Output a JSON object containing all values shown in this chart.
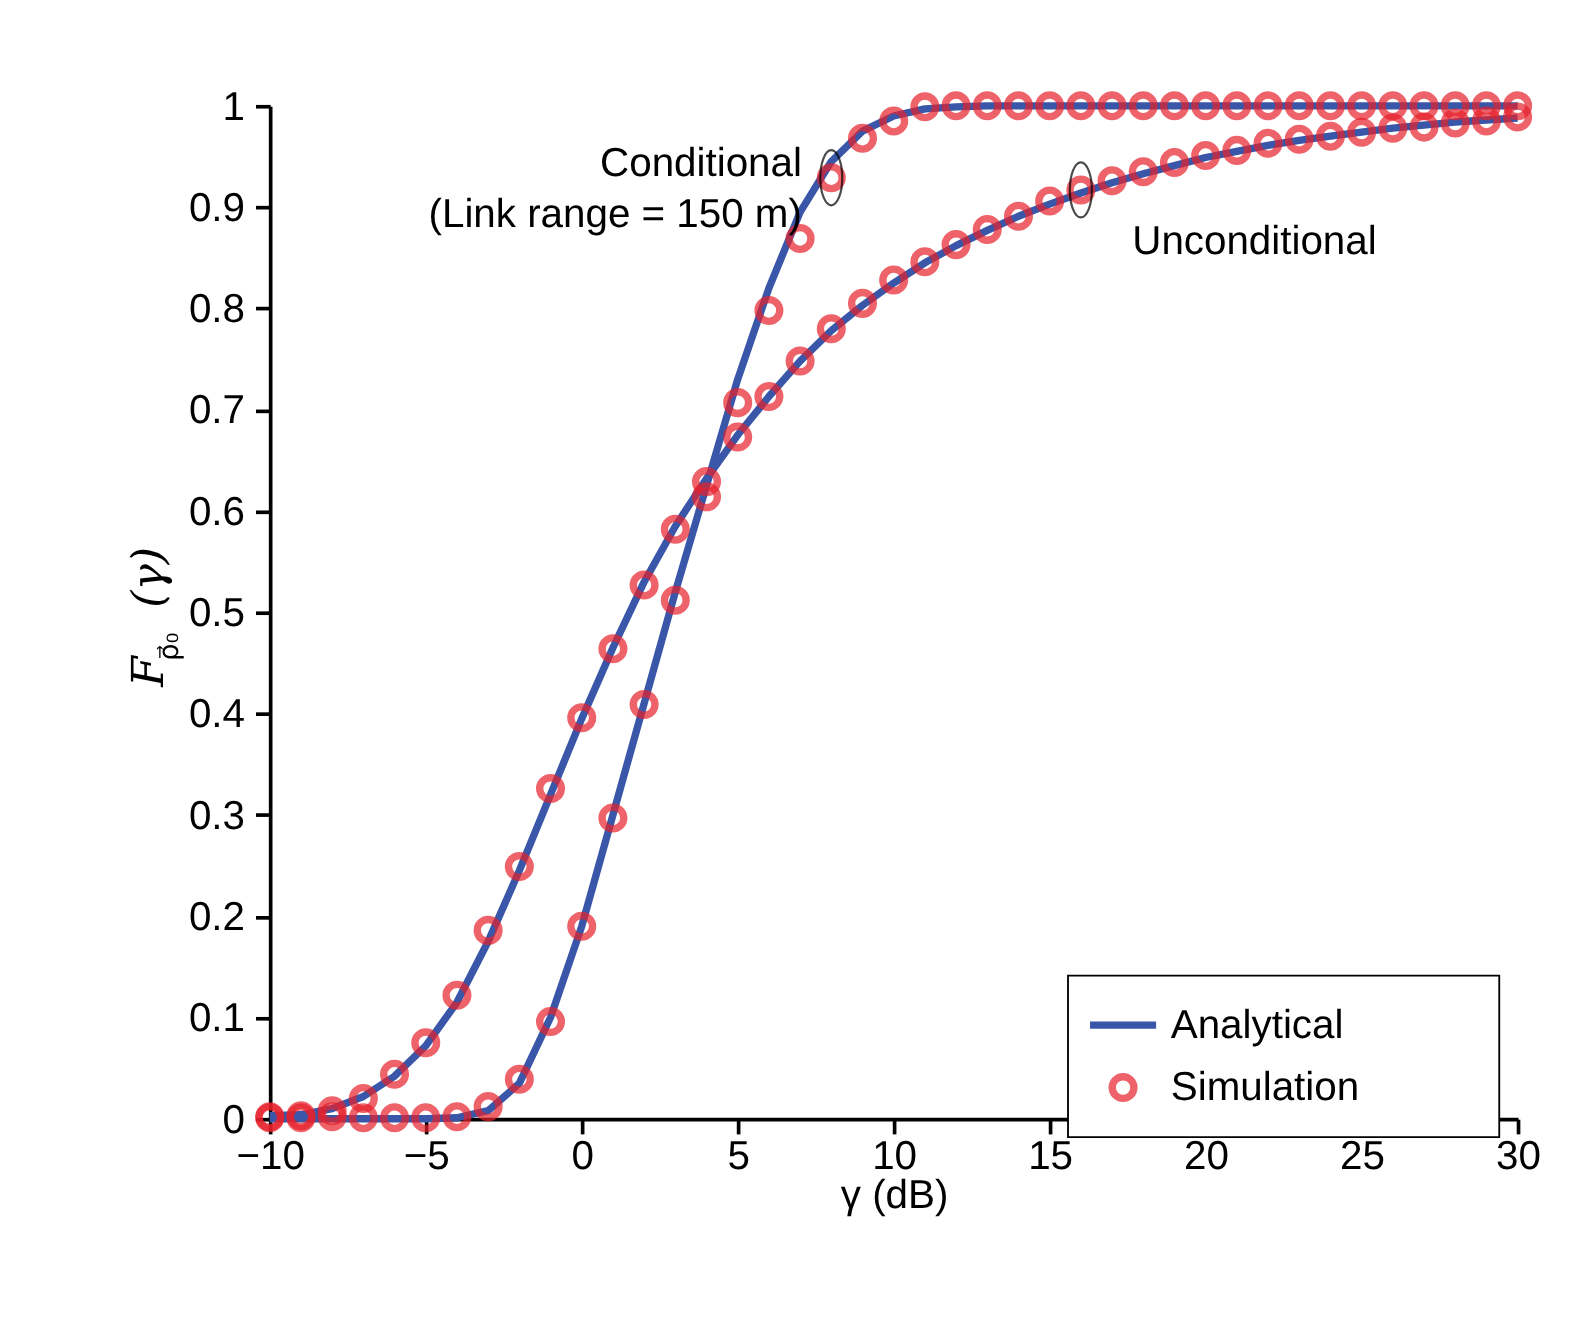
{
  "chart_data": {
    "type": "line",
    "xlabel": "γ (dB)",
    "ylabel": "F$_{ρ⃗₀}$(γ)",
    "xlim": [
      -10,
      30
    ],
    "xticks": [
      -10,
      -5,
      0,
      5,
      10,
      15,
      20,
      25,
      30
    ],
    "ylim": [
      0,
      1
    ],
    "yticks": [
      0,
      0.1,
      0.2,
      0.3,
      0.4,
      0.5,
      0.6,
      0.7,
      0.8,
      0.9,
      1
    ],
    "grid": false,
    "legend": "bottom right",
    "line_style": "solid",
    "x": [
      -10,
      -9,
      -8,
      -7,
      -6,
      -5,
      -4,
      -3,
      -2,
      -1,
      0,
      1,
      2,
      3,
      4,
      5,
      6,
      7,
      8,
      9,
      10,
      11,
      12,
      13,
      14,
      15,
      16,
      17,
      18,
      19,
      20,
      21,
      22,
      23,
      24,
      25,
      26,
      27,
      28,
      29,
      30
    ],
    "series": [
      {
        "name": "Analytical",
        "color": "#3a56a8",
        "values": [
          0.003,
          0.004,
          0.01,
          0.022,
          0.042,
          0.072,
          0.115,
          0.175,
          0.245,
          0.32,
          0.395,
          0.465,
          0.53,
          0.585,
          0.632,
          0.675,
          0.713,
          0.748,
          0.778,
          0.803,
          0.825,
          0.845,
          0.862,
          0.877,
          0.891,
          0.903,
          0.914,
          0.924,
          0.933,
          0.941,
          0.949,
          0.955,
          0.961,
          0.966,
          0.97,
          0.974,
          0.978,
          0.981,
          0.984,
          0.986,
          0.988
        ]
      },
      {
        "color": "#3a56a8",
        "values": [
          0,
          0,
          0,
          0,
          0,
          0,
          0.001,
          0.008,
          0.035,
          0.1,
          0.19,
          0.3,
          0.41,
          0.52,
          0.625,
          0.73,
          0.82,
          0.895,
          0.945,
          0.975,
          0.99,
          0.997,
          0.999,
          1,
          1,
          1,
          1,
          1,
          1,
          1,
          1,
          1,
          1,
          1,
          1,
          1,
          1,
          1,
          1,
          1,
          1
        ]
      },
      {
        "name": "Simulation",
        "type": "scatter",
        "marker": "circle",
        "color": "#e8202a",
        "values": [
          0.002,
          0.003,
          0.008,
          0.02,
          0.044,
          0.075,
          0.122,
          0.186,
          0.249,
          0.326,
          0.396,
          0.464,
          0.527,
          0.582,
          0.629,
          0.673,
          0.713,
          0.748,
          0.78,
          0.805,
          0.828,
          0.846,
          0.863,
          0.878,
          0.891,
          0.906,
          0.917,
          0.926,
          0.935,
          0.944,
          0.951,
          0.956,
          0.963,
          0.967,
          0.97,
          0.974,
          0.978,
          0.979,
          0.983,
          0.985,
          0.989
        ]
      },
      {
        "type": "scatter",
        "marker": "circle",
        "color": "#e8202a",
        "values": [
          0.001,
          0.001,
          0.002,
          0.001,
          0.001,
          0.001,
          0.002,
          0.012,
          0.039,
          0.096,
          0.19,
          0.297,
          0.409,
          0.512,
          0.614,
          0.707,
          0.798,
          0.869,
          0.929,
          0.968,
          0.985,
          0.999,
          1,
          1,
          1,
          1,
          1,
          1,
          1,
          1,
          1,
          1,
          1,
          1,
          1,
          1,
          1,
          1,
          1,
          1,
          1
        ]
      }
    ],
    "annotations": [
      {
        "text": "Conditional\n(Link range = 150 m)",
        "x": 8,
        "y": 0.929
      },
      {
        "text": "Unconditional",
        "x": 16,
        "y": 0.917
      }
    ]
  }
}
